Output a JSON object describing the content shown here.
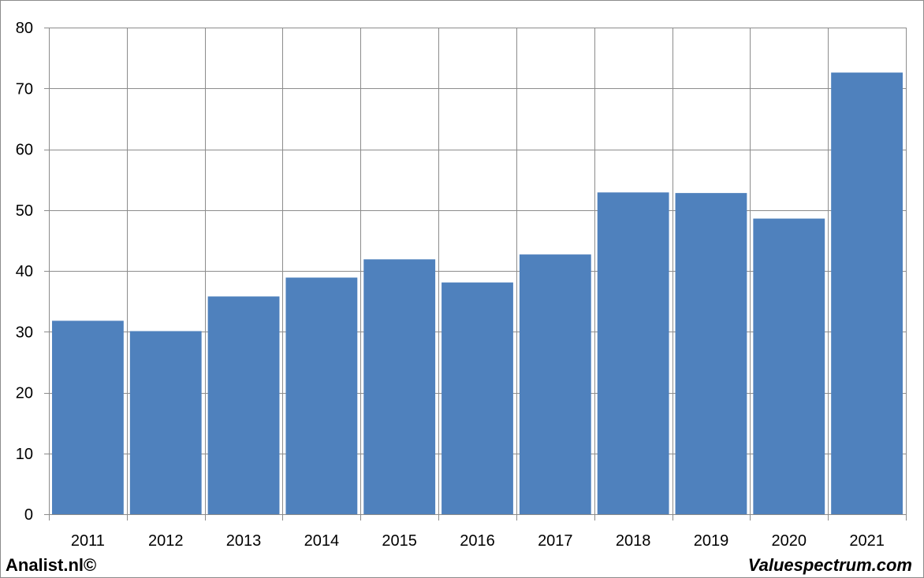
{
  "chart_data": {
    "type": "bar",
    "categories": [
      "2011",
      "2012",
      "2013",
      "2014",
      "2015",
      "2016",
      "2017",
      "2018",
      "2019",
      "2020",
      "2021"
    ],
    "values": [
      31.8,
      30.1,
      35.8,
      38.9,
      41.9,
      38.1,
      42.7,
      52.9,
      52.8,
      48.6,
      72.6
    ],
    "title": "",
    "xlabel": "",
    "ylabel": "",
    "ylim": [
      0,
      80
    ],
    "yticks": [
      0,
      10,
      20,
      30,
      40,
      50,
      60,
      70,
      80
    ],
    "grid": true,
    "bar_color": "#4f81bd",
    "grid_color": "#8c8c8c"
  },
  "footer": {
    "left": "Analist.nl©",
    "right": "Valuespectrum.com"
  }
}
